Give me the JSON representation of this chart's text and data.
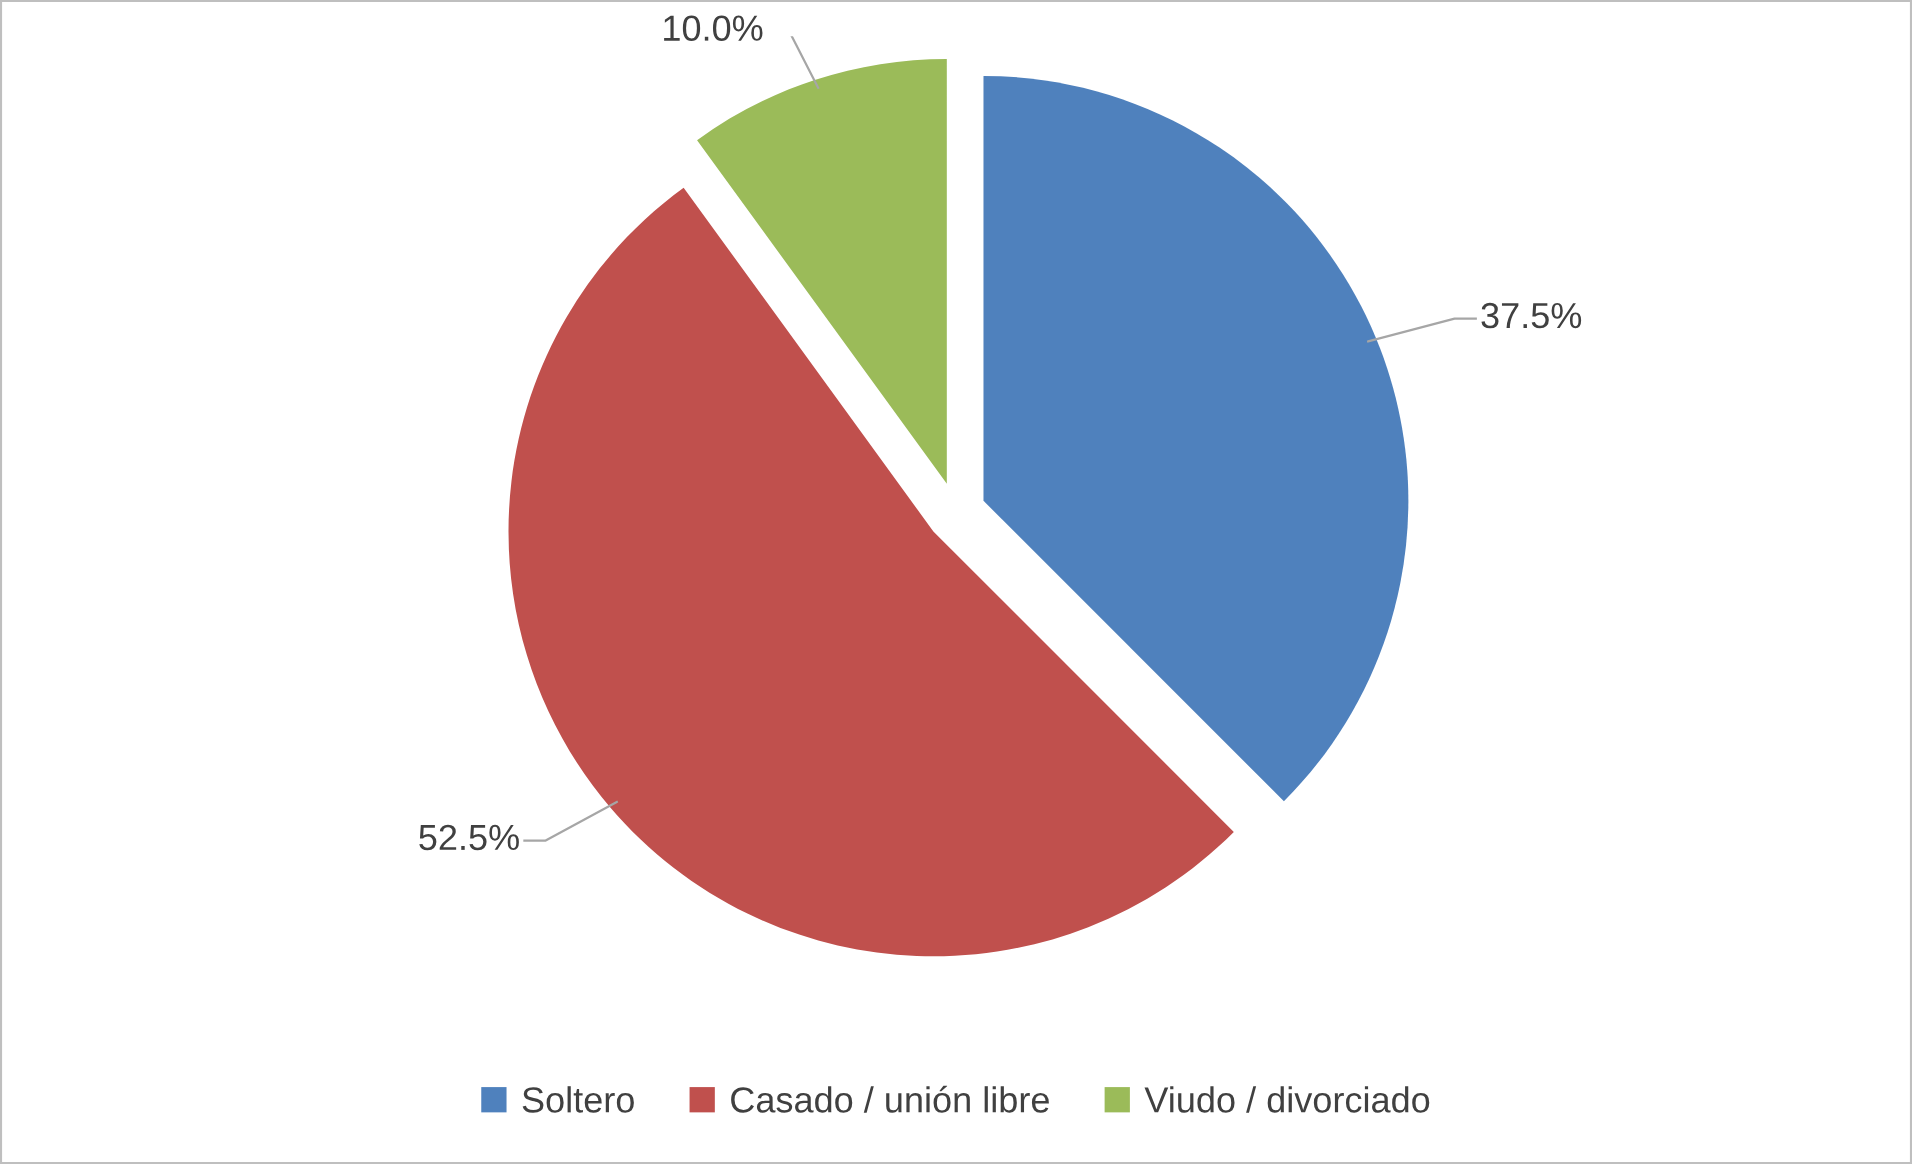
{
  "chart_data": {
    "type": "pie",
    "categories": [
      "Soltero",
      "Casado / unión libre",
      "Viudo / divorciado"
    ],
    "values": [
      37.5,
      52.5,
      10.0
    ],
    "colors": [
      "#4f81bd",
      "#c0504d",
      "#9bbb59"
    ],
    "value_labels": [
      "37.5%",
      "52.5%",
      "10.0%"
    ],
    "legend": "bottom"
  }
}
